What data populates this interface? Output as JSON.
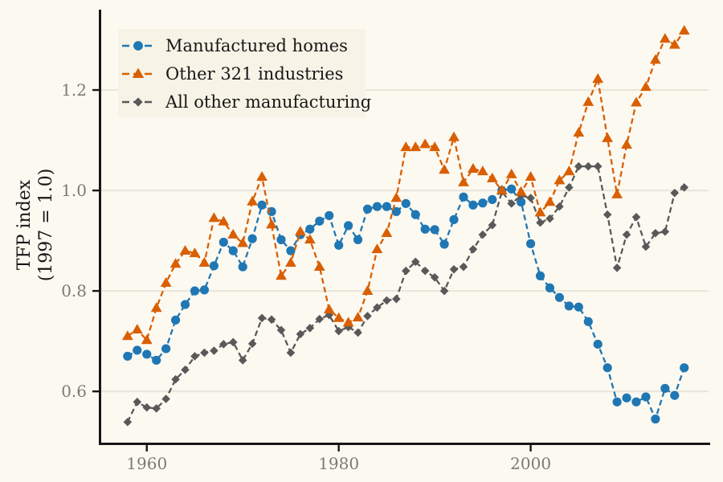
{
  "figure": {
    "background_color": "#fcf9f1",
    "ylabel_line1": "TFP index",
    "ylabel_line2": "(1997 = 1.0)"
  },
  "chart_data": {
    "type": "line",
    "title": "",
    "xlabel": "",
    "ylabel": "TFP index (1997 = 1.0)",
    "x_ticks": [
      1960,
      1980,
      2000
    ],
    "y_ticks": [
      0.6,
      0.8,
      1.0,
      1.2
    ],
    "xlim": [
      1955.0,
      2018.7
    ],
    "ylim": [
      0.498,
      1.36
    ],
    "grid": "horizontal-only",
    "gridline_color": "#e8e5da",
    "spine_color": "#171717",
    "tick_label_color": "#7d7a74",
    "legend_position": "top-left",
    "legend_background": "#f7f3e6",
    "line_style": "dashed",
    "years": [
      1958,
      1959,
      1960,
      1961,
      1962,
      1963,
      1964,
      1965,
      1966,
      1967,
      1968,
      1969,
      1970,
      1971,
      1972,
      1973,
      1974,
      1975,
      1976,
      1977,
      1978,
      1979,
      1980,
      1981,
      1982,
      1983,
      1984,
      1985,
      1986,
      1987,
      1988,
      1989,
      1990,
      1991,
      1992,
      1993,
      1994,
      1995,
      1996,
      1997,
      1998,
      1999,
      2000,
      2001,
      2002,
      2003,
      2004,
      2005,
      2006,
      2007,
      2008,
      2009,
      2010,
      2011,
      2012,
      2013,
      2014,
      2015,
      2016
    ],
    "series": [
      {
        "id": "manufactured-homes",
        "name": "Manufactured homes",
        "color": "#1f77b4",
        "marker": "circle",
        "values": [
          0.67,
          0.682,
          0.674,
          0.662,
          0.685,
          0.742,
          0.773,
          0.8,
          0.802,
          0.85,
          0.897,
          0.88,
          0.848,
          0.904,
          0.971,
          0.958,
          0.902,
          0.88,
          0.912,
          0.923,
          0.939,
          0.95,
          0.891,
          0.93,
          0.902,
          0.963,
          0.968,
          0.968,
          0.958,
          0.974,
          0.952,
          0.923,
          0.922,
          0.893,
          0.942,
          0.987,
          0.971,
          0.975,
          0.982,
          1.0,
          1.003,
          0.977,
          0.894,
          0.83,
          0.806,
          0.787,
          0.77,
          0.768,
          0.739,
          0.694,
          0.647,
          0.579,
          0.587,
          0.579,
          0.589,
          0.545,
          0.606,
          0.592,
          0.647
        ]
      },
      {
        "id": "other-321-industries",
        "name": "Other 321 industries",
        "color": "#d95f02",
        "marker": "triangle",
        "values": [
          0.71,
          0.723,
          0.702,
          0.766,
          0.816,
          0.854,
          0.88,
          0.875,
          0.856,
          0.945,
          0.938,
          0.912,
          0.895,
          0.978,
          1.027,
          0.932,
          0.83,
          0.856,
          0.918,
          0.902,
          0.848,
          0.763,
          0.746,
          0.737,
          0.747,
          0.8,
          0.883,
          0.915,
          0.985,
          1.086,
          1.086,
          1.092,
          1.086,
          1.041,
          1.106,
          1.016,
          1.043,
          1.038,
          1.024,
          1.0,
          1.032,
          0.997,
          1.027,
          0.956,
          0.977,
          1.02,
          1.038,
          1.115,
          1.176,
          1.222,
          1.104,
          0.992,
          1.091,
          1.175,
          1.206,
          1.26,
          1.302,
          1.29,
          1.318
        ]
      },
      {
        "id": "all-other-manufacturing",
        "name": "All other manufacturing",
        "color": "#595959",
        "marker": "diamond",
        "values": [
          0.539,
          0.579,
          0.568,
          0.566,
          0.585,
          0.624,
          0.643,
          0.67,
          0.677,
          0.681,
          0.694,
          0.698,
          0.662,
          0.695,
          0.746,
          0.743,
          0.722,
          0.677,
          0.714,
          0.726,
          0.744,
          0.752,
          0.72,
          0.728,
          0.717,
          0.75,
          0.767,
          0.781,
          0.784,
          0.84,
          0.858,
          0.84,
          0.827,
          0.8,
          0.843,
          0.848,
          0.883,
          0.912,
          0.931,
          0.998,
          0.974,
          0.99,
          0.985,
          0.936,
          0.944,
          0.968,
          1.006,
          1.048,
          1.048,
          1.048,
          0.952,
          0.846,
          0.912,
          0.947,
          0.888,
          0.915,
          0.918,
          0.995,
          1.006
        ]
      }
    ],
    "z_order": [
      "manufactured-homes",
      "all-other-manufacturing",
      "other-321-industries"
    ]
  }
}
